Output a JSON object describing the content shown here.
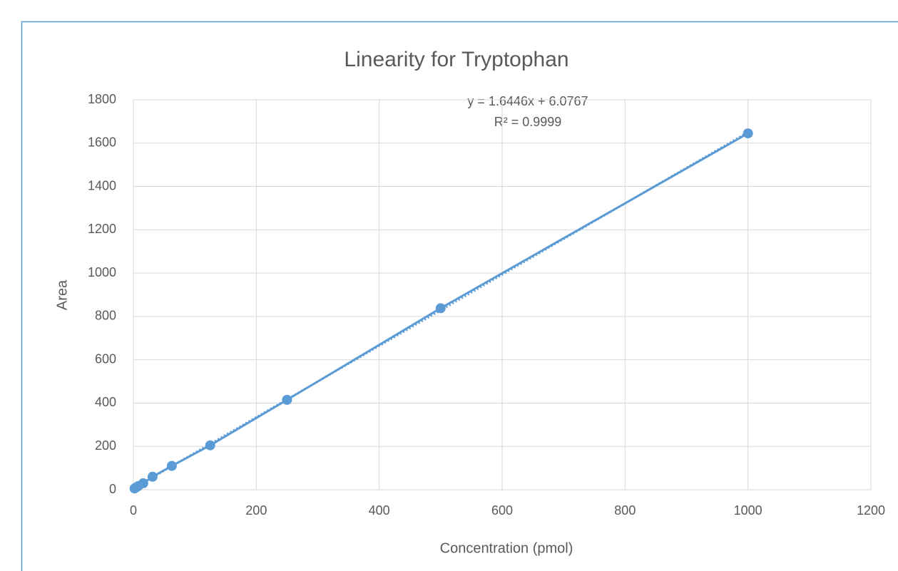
{
  "chart_data": {
    "type": "scatter",
    "title": "Linearity for Tryptophan",
    "x_label": "Concentration (pmol)",
    "y_label": "Area",
    "series": [
      {
        "name": "Tryptophan",
        "color": "#5b9bd5",
        "x": [
          2,
          4,
          8,
          16,
          31.25,
          62.5,
          125,
          250,
          500,
          1000
        ],
        "values": [
          6,
          10,
          17,
          30,
          60,
          110,
          205,
          415,
          838,
          1645
        ]
      }
    ],
    "trendline": {
      "slope": 1.6446,
      "intercept": 6.0767,
      "equation": "y = 1.6446x + 6.0767",
      "r2": "R² = 0.9999"
    },
    "xlim": [
      0,
      1200
    ],
    "xticks": [
      0,
      200,
      400,
      600,
      800,
      1000,
      1200
    ],
    "ylim": [
      0,
      1800
    ],
    "yticks": [
      0,
      200,
      400,
      600,
      800,
      1000,
      1200,
      1400,
      1600,
      1800
    ],
    "grid": true
  }
}
